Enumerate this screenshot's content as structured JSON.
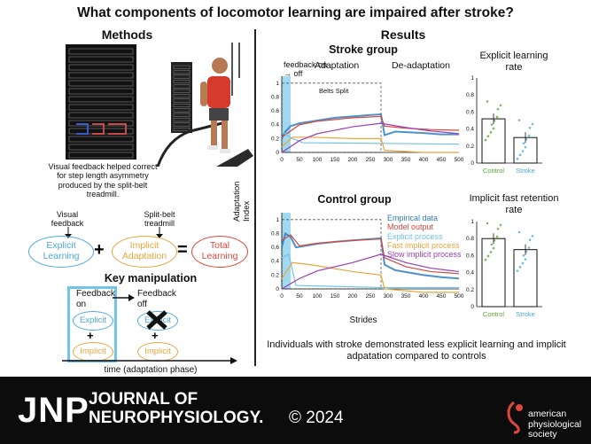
{
  "title": "What components of locomotor learning are impaired after stroke?",
  "methods": {
    "heading": "Methods",
    "feedback_caption": "Visual feedback helped correct for step length asymmetry produced by the split-belt treadmill.",
    "visual_feedback_label": "Visual feedback",
    "split_belt_label": "Split-belt treadmill",
    "explicit_learning": "Explicit Learning",
    "implicit_adaptation": "Implicit Adaptation",
    "total_learning": "Total Learning",
    "plus": "+",
    "equals": "=",
    "key_manipulation": "Key manipulation",
    "feedback_on": "Feedback on",
    "feedback_off": "Feedback off",
    "explicit": "Explicit",
    "implicit": "Implicit",
    "time_axis": "time (adaptation phase)"
  },
  "results": {
    "heading": "Results",
    "stroke_group": "Stroke group",
    "control_group": "Control group",
    "adaptation": "Adaptation",
    "deadaptation": "De-adaptation",
    "feedback_on_off": "feedback on → off",
    "belts_split": "Belts Split",
    "ylabel": "Adaptation Index",
    "xlabel": "Strides",
    "explicit_rate_title": "Explicit learning rate",
    "implicit_fast_title": "Implicit fast retention rate",
    "control": "Control",
    "stroke": "Stroke",
    "conclusion": "Individuals with stroke demonstrated less explicit learning and implicit adpatation compared to controls"
  },
  "legend": [
    "Empirical data",
    "Model output",
    "Explicit process",
    "Fast implicit process",
    "Slow implicit process"
  ],
  "colors": {
    "empirical": "#2e7fc0",
    "model": "#d9473d",
    "explicit": "#6fc4e8",
    "fast_implicit": "#e8a53a",
    "slow_implicit": "#9b3fb5",
    "control_bar": "#5aa832",
    "stroke_bar": "#4aa8de"
  },
  "footer": {
    "jnp": "JNP",
    "journal_line1": "JOURNAL OF",
    "journal_line2": "NEUROPHYSIOLOGY.",
    "year": "© 2024",
    "publisher": "american physiological society"
  },
  "chart_data": [
    {
      "type": "line",
      "title": "Stroke group",
      "xlabel": "Strides",
      "ylabel": "Adaptation Index",
      "xlim": [
        0,
        500
      ],
      "ylim": [
        0,
        1.1
      ],
      "xticks": [
        0,
        50,
        100,
        150,
        200,
        250,
        300,
        350,
        400,
        450,
        500
      ],
      "yticks": [
        0,
        0.2,
        0.4,
        0.6,
        0.8,
        1
      ],
      "series": [
        {
          "name": "Empirical data",
          "x": [
            0,
            10,
            25,
            50,
            100,
            150,
            200,
            250,
            280,
            290,
            320,
            400,
            450,
            500
          ],
          "y": [
            0.2,
            0.3,
            0.38,
            0.42,
            0.46,
            0.5,
            0.52,
            0.54,
            0.55,
            0.25,
            0.3,
            0.28,
            0.26,
            0.26
          ]
        },
        {
          "name": "Model output",
          "x": [
            0,
            50,
            100,
            200,
            280,
            290,
            350,
            420,
            500
          ],
          "y": [
            0.22,
            0.4,
            0.45,
            0.5,
            0.52,
            0.38,
            0.35,
            0.33,
            0.32
          ]
        },
        {
          "name": "Explicit process",
          "x": [
            0,
            30,
            60,
            280,
            500
          ],
          "y": [
            0.3,
            0.2,
            0.14,
            0.13,
            0.12
          ]
        },
        {
          "name": "Fast implicit process",
          "x": [
            0,
            30,
            80,
            200,
            280,
            290,
            400,
            500
          ],
          "y": [
            0.08,
            0.22,
            0.22,
            0.2,
            0.2,
            0.03,
            0.0,
            0.0
          ]
        },
        {
          "name": "Slow implicit process",
          "x": [
            0,
            50,
            100,
            200,
            280,
            350,
            420,
            500
          ],
          "y": [
            0.0,
            0.17,
            0.27,
            0.37,
            0.42,
            0.36,
            0.31,
            0.27
          ]
        }
      ]
    },
    {
      "type": "line",
      "title": "Control group",
      "xlabel": "Strides",
      "ylabel": "Adaptation Index",
      "xlim": [
        0,
        500
      ],
      "ylim": [
        0,
        1.1
      ],
      "xticks": [
        0,
        50,
        100,
        150,
        200,
        250,
        300,
        350,
        400,
        450,
        500
      ],
      "yticks": [
        0,
        0.2,
        0.4,
        0.6,
        0.8,
        1
      ],
      "series": [
        {
          "name": "Empirical data",
          "x": [
            0,
            10,
            25,
            40,
            100,
            150,
            200,
            250,
            280,
            290,
            320,
            400,
            450,
            500
          ],
          "y": [
            0.6,
            0.8,
            0.75,
            0.6,
            0.65,
            0.68,
            0.7,
            0.72,
            0.73,
            0.35,
            0.27,
            0.2,
            0.17,
            0.15
          ]
        },
        {
          "name": "Model output",
          "x": [
            0,
            25,
            50,
            100,
            200,
            280,
            290,
            350,
            420,
            500
          ],
          "y": [
            0.7,
            0.78,
            0.62,
            0.66,
            0.7,
            0.72,
            0.45,
            0.32,
            0.25,
            0.22
          ]
        },
        {
          "name": "Explicit process",
          "x": [
            0,
            20,
            40,
            280,
            500
          ],
          "y": [
            0.45,
            0.5,
            0.05,
            0.02,
            0.02
          ]
        },
        {
          "name": "Fast implicit process",
          "x": [
            0,
            30,
            80,
            200,
            280,
            290,
            400,
            500
          ],
          "y": [
            0.15,
            0.38,
            0.35,
            0.25,
            0.2,
            0.0,
            -0.05,
            -0.05
          ]
        },
        {
          "name": "Slow implicit process",
          "x": [
            0,
            50,
            100,
            200,
            280,
            350,
            420,
            500
          ],
          "y": [
            0.0,
            0.15,
            0.26,
            0.38,
            0.5,
            0.38,
            0.3,
            0.25
          ]
        }
      ]
    },
    {
      "type": "bar",
      "title": "Explicit learning rate",
      "categories": [
        "Control",
        "Stroke"
      ],
      "values": [
        0.52,
        0.3
      ],
      "yticks": [
        0,
        0.2,
        0.4,
        0.6,
        0.8,
        1
      ],
      "ylim": [
        0,
        1
      ]
    },
    {
      "type": "bar",
      "title": "Implicit fast retention rate",
      "categories": [
        "Control",
        "Stroke"
      ],
      "values": [
        0.8,
        0.67
      ],
      "yticks": [
        0,
        0.2,
        0.4,
        0.6,
        0.8,
        1
      ],
      "ylim": [
        0,
        1
      ]
    }
  ]
}
